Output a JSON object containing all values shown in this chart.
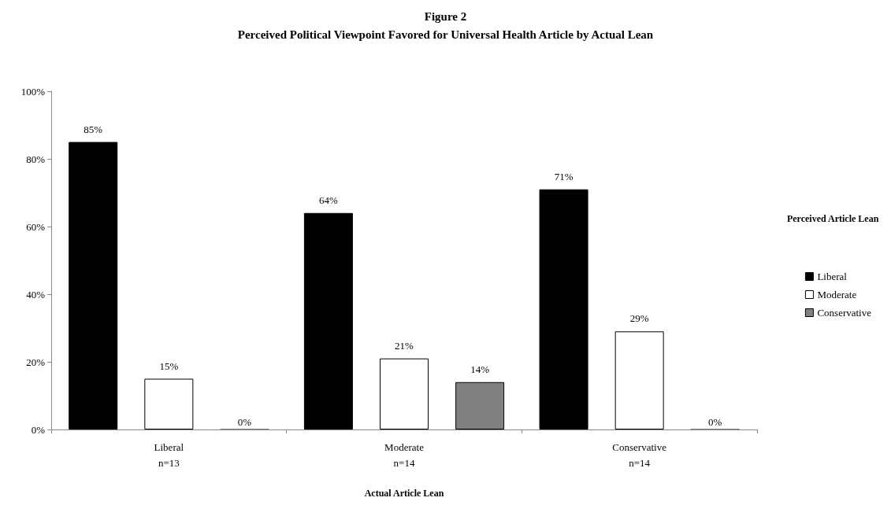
{
  "chart_data": {
    "type": "bar",
    "title": "Figure 2",
    "subtitle": "Perceived Political Viewpoint Favored for Universal Health Article by Actual Lean",
    "xlabel": "Actual Article Lean",
    "legend_title": "Perceived Article Lean",
    "categories": [
      "Liberal\nn=13",
      "Moderate\nn=14",
      "Conservative\nn=14"
    ],
    "series": [
      {
        "name": "Liberal",
        "color": "#000000",
        "values": [
          85,
          64,
          71
        ],
        "value_labels": [
          "85%",
          "64%",
          "71%"
        ]
      },
      {
        "name": "Moderate",
        "color": "#ffffff",
        "values": [
          15,
          21,
          29
        ],
        "value_labels": [
          "15%",
          "21%",
          "29%"
        ]
      },
      {
        "name": "Conservative",
        "color": "#808080",
        "values": [
          0,
          14,
          0
        ],
        "value_labels": [
          "0%",
          "14%",
          "0%"
        ]
      }
    ],
    "ylim": [
      0,
      100
    ],
    "yticks": [
      {
        "value": 0,
        "label": "0%"
      },
      {
        "value": 20,
        "label": "20%"
      },
      {
        "value": 40,
        "label": "40%"
      },
      {
        "value": 60,
        "label": "60%"
      },
      {
        "value": 80,
        "label": "80%"
      },
      {
        "value": 100,
        "label": "100%"
      }
    ],
    "grid": false,
    "legend": "right"
  }
}
